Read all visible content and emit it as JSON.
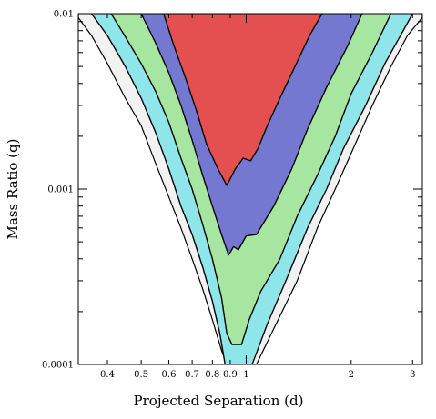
{
  "chart_data": {
    "type": "area",
    "title": "",
    "xlabel": "Projected Separation (d)",
    "ylabel": "Mass Ratio (q)",
    "x_scale": "log",
    "y_scale": "log",
    "xlim": [
      0.33,
      3.2
    ],
    "ylim": [
      0.0001,
      0.01
    ],
    "x_tick_labels": [
      {
        "value": 0.4,
        "label": "0.4"
      },
      {
        "value": 0.5,
        "label": "0.5"
      },
      {
        "value": 0.6,
        "label": "0.6"
      },
      {
        "value": 0.7,
        "label": "0.7"
      },
      {
        "value": 0.8,
        "label": "0.8"
      },
      {
        "value": 0.9,
        "label": "0.9"
      },
      {
        "value": 1,
        "label": "1"
      },
      {
        "value": 2,
        "label": "2"
      },
      {
        "value": 3,
        "label": "3"
      }
    ],
    "y_tick_labels": [
      {
        "value": 0.0001,
        "label": "0.0001"
      },
      {
        "value": 0.001,
        "label": "0.001"
      },
      {
        "value": 0.01,
        "label": "0.01"
      }
    ],
    "colors": {
      "outer": "#f2f2f2",
      "cyan": "#8fe6ea",
      "green": "#a6e6a0",
      "blue": "#7478d0",
      "red": "#e45050",
      "contour": "#000000"
    },
    "regions": [
      {
        "fill": "outer",
        "left": [
          [
            0.33,
            0.0095
          ],
          [
            0.36,
            0.0075
          ],
          [
            0.4,
            0.0052
          ],
          [
            0.45,
            0.0033
          ],
          [
            0.5,
            0.0023
          ],
          [
            0.55,
            0.0014
          ],
          [
            0.6,
            0.0009
          ],
          [
            0.65,
            0.0006
          ],
          [
            0.7,
            0.0004
          ],
          [
            0.75,
            0.00027
          ],
          [
            0.8,
            0.00018
          ],
          [
            0.85,
            0.00012
          ],
          [
            0.88,
            0.0001
          ]
        ],
        "right": [
          [
            1.07,
            0.0001
          ],
          [
            1.2,
            0.00016
          ],
          [
            1.4,
            0.0003
          ],
          [
            1.6,
            0.0006
          ],
          [
            1.8,
            0.001
          ],
          [
            2.0,
            0.0016
          ],
          [
            2.3,
            0.003
          ],
          [
            2.6,
            0.005
          ],
          [
            2.9,
            0.0075
          ],
          [
            3.2,
            0.0095
          ]
        ]
      },
      {
        "fill": "cyan",
        "left": [
          [
            0.36,
            0.01
          ],
          [
            0.4,
            0.0075
          ],
          [
            0.45,
            0.005
          ],
          [
            0.5,
            0.0033
          ],
          [
            0.55,
            0.0021
          ],
          [
            0.6,
            0.0013
          ],
          [
            0.65,
            0.0008
          ],
          [
            0.7,
            0.00055
          ],
          [
            0.75,
            0.00036
          ],
          [
            0.8,
            0.00023
          ],
          [
            0.84,
            0.00015
          ],
          [
            0.87,
            0.0001
          ]
        ],
        "right": [
          [
            1.04,
            0.0001
          ],
          [
            1.15,
            0.00017
          ],
          [
            1.3,
            0.0003
          ],
          [
            1.5,
            0.0006
          ],
          [
            1.7,
            0.001
          ],
          [
            1.9,
            0.0017
          ],
          [
            2.2,
            0.003
          ],
          [
            2.5,
            0.0052
          ],
          [
            2.8,
            0.0078
          ],
          [
            3.0,
            0.01
          ]
        ]
      },
      {
        "fill": "green",
        "left": [
          [
            0.41,
            0.01
          ],
          [
            0.45,
            0.0074
          ],
          [
            0.5,
            0.0052
          ],
          [
            0.55,
            0.0036
          ],
          [
            0.6,
            0.0024
          ],
          [
            0.65,
            0.0015
          ],
          [
            0.7,
            0.001
          ],
          [
            0.75,
            0.00063
          ],
          [
            0.8,
            0.0004
          ],
          [
            0.85,
            0.00024
          ],
          [
            0.88,
            0.00015
          ],
          [
            0.91,
            0.00013
          ]
        ],
        "right": [
          [
            0.97,
            0.00013
          ],
          [
            1.02,
            0.00018
          ],
          [
            1.1,
            0.00026
          ],
          [
            1.25,
            0.0004
          ],
          [
            1.4,
            0.0007
          ],
          [
            1.6,
            0.0012
          ],
          [
            1.8,
            0.002
          ],
          [
            2.0,
            0.0035
          ],
          [
            2.3,
            0.006
          ],
          [
            2.6,
            0.01
          ]
        ]
      },
      {
        "fill": "blue",
        "left": [
          [
            0.5,
            0.01
          ],
          [
            0.55,
            0.0068
          ],
          [
            0.6,
            0.0046
          ],
          [
            0.65,
            0.003
          ],
          [
            0.7,
            0.0019
          ],
          [
            0.75,
            0.0012
          ],
          [
            0.8,
            0.0008
          ],
          [
            0.85,
            0.00055
          ],
          [
            0.89,
            0.00042
          ]
        ],
        "right": [
          [
            0.92,
            0.00047
          ],
          [
            0.95,
            0.00045
          ],
          [
            1.0,
            0.00054
          ],
          [
            1.07,
            0.00055
          ],
          [
            1.2,
            0.0008
          ],
          [
            1.35,
            0.0013
          ],
          [
            1.5,
            0.0022
          ],
          [
            1.7,
            0.0038
          ],
          [
            1.95,
            0.0065
          ],
          [
            2.15,
            0.01
          ]
        ]
      },
      {
        "fill": "red",
        "left": [
          [
            0.58,
            0.01
          ],
          [
            0.62,
            0.0066
          ],
          [
            0.67,
            0.0043
          ],
          [
            0.72,
            0.0028
          ],
          [
            0.77,
            0.0018
          ],
          [
            0.83,
            0.0013
          ],
          [
            0.88,
            0.00105
          ]
        ],
        "right": [
          [
            0.93,
            0.0013
          ],
          [
            0.98,
            0.0015
          ],
          [
            1.03,
            0.00145
          ],
          [
            1.08,
            0.0017
          ],
          [
            1.15,
            0.0023
          ],
          [
            1.25,
            0.0033
          ],
          [
            1.38,
            0.005
          ],
          [
            1.52,
            0.0075
          ],
          [
            1.65,
            0.01
          ]
        ]
      }
    ]
  }
}
